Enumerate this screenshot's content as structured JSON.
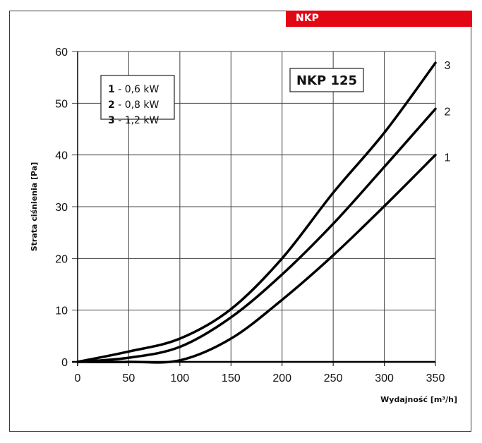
{
  "banner": {
    "label": "NKP",
    "color": "#e30613"
  },
  "chart_data": {
    "type": "line",
    "title": "NKP 125",
    "xlabel": "Wydajność [m³/h]",
    "ylabel": "Strata ciśnienia [Pa]",
    "xlim": [
      0,
      350
    ],
    "ylim": [
      0,
      60
    ],
    "xticks": [
      0,
      50,
      100,
      150,
      200,
      250,
      300,
      350
    ],
    "yticks": [
      0,
      10,
      20,
      30,
      40,
      50,
      60
    ],
    "grid": true,
    "legend": {
      "placement": "top-left",
      "entries": [
        {
          "key": "1",
          "text": " - 0,6 kW"
        },
        {
          "key": "2",
          "text": " - 0,8 kW"
        },
        {
          "key": "3",
          "text": " - 1,2 kW"
        }
      ]
    },
    "x": [
      0,
      50,
      100,
      150,
      200,
      250,
      300,
      350
    ],
    "series": [
      {
        "name": "1",
        "label": "0,6 kW",
        "values": [
          0,
          0,
          0.3,
          4.5,
          12.0,
          20.6,
          30.1,
          40.0
        ]
      },
      {
        "name": "2",
        "label": "0,8 kW",
        "values": [
          0,
          0.8,
          2.9,
          8.6,
          16.9,
          26.7,
          37.7,
          48.9
        ]
      },
      {
        "name": "3",
        "label": "1,2 kW",
        "values": [
          0,
          2.0,
          4.5,
          10.2,
          20.0,
          32.7,
          44.3,
          57.8
        ]
      }
    ]
  }
}
